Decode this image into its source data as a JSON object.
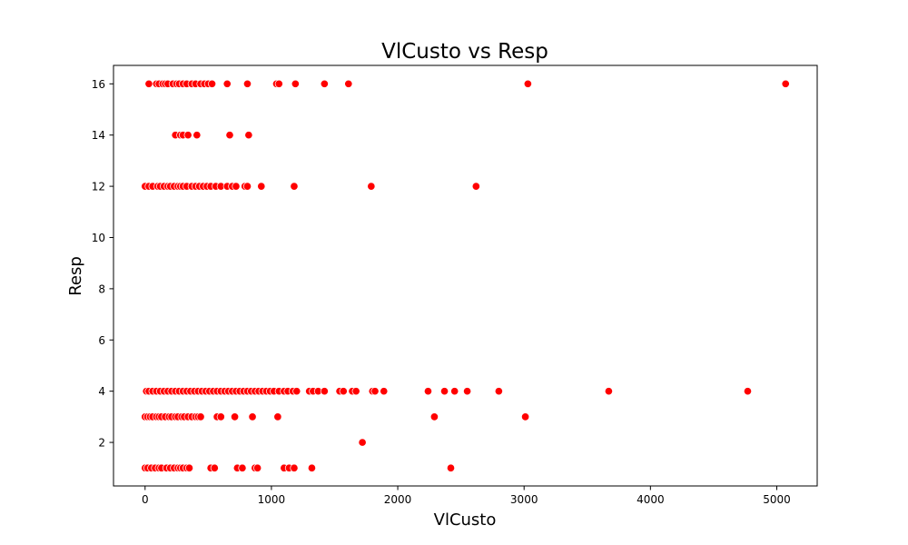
{
  "chart_data": {
    "type": "scatter",
    "title": "VlCusto vs Resp",
    "xlabel": "VlCusto",
    "ylabel": "Resp",
    "xlim": [
      -250,
      5320
    ],
    "ylim": [
      0.3,
      16.72
    ],
    "xticks": [
      0,
      1000,
      2000,
      3000,
      4000,
      5000
    ],
    "yticks": [
      2,
      4,
      6,
      8,
      10,
      12,
      14,
      16
    ],
    "grid": false,
    "legend": "none",
    "marker_color": "#ff0000",
    "series": [
      {
        "points": [
          [
            30,
            16
          ],
          [
            90,
            16
          ],
          [
            110,
            16
          ],
          [
            140,
            16
          ],
          [
            160,
            16
          ],
          [
            180,
            16
          ],
          [
            220,
            16
          ],
          [
            250,
            16
          ],
          [
            270,
            16
          ],
          [
            300,
            16
          ],
          [
            330,
            16
          ],
          [
            370,
            16
          ],
          [
            400,
            16
          ],
          [
            440,
            16
          ],
          [
            470,
            16
          ],
          [
            500,
            16
          ],
          [
            530,
            16
          ],
          [
            650,
            16
          ],
          [
            810,
            16
          ],
          [
            1040,
            16
          ],
          [
            1060,
            16
          ],
          [
            1190,
            16
          ],
          [
            1420,
            16
          ],
          [
            1610,
            16
          ],
          [
            3030,
            16
          ],
          [
            5070,
            16
          ],
          [
            240,
            14
          ],
          [
            280,
            14
          ],
          [
            300,
            14
          ],
          [
            340,
            14
          ],
          [
            410,
            14
          ],
          [
            670,
            14
          ],
          [
            820,
            14
          ],
          [
            0,
            12
          ],
          [
            30,
            12
          ],
          [
            60,
            12
          ],
          [
            100,
            12
          ],
          [
            120,
            12
          ],
          [
            150,
            12
          ],
          [
            180,
            12
          ],
          [
            200,
            12
          ],
          [
            230,
            12
          ],
          [
            260,
            12
          ],
          [
            280,
            12
          ],
          [
            300,
            12
          ],
          [
            330,
            12
          ],
          [
            370,
            12
          ],
          [
            400,
            12
          ],
          [
            430,
            12
          ],
          [
            460,
            12
          ],
          [
            490,
            12
          ],
          [
            520,
            12
          ],
          [
            560,
            12
          ],
          [
            600,
            12
          ],
          [
            650,
            12
          ],
          [
            690,
            12
          ],
          [
            720,
            12
          ],
          [
            790,
            12
          ],
          [
            810,
            12
          ],
          [
            920,
            12
          ],
          [
            1180,
            12
          ],
          [
            1790,
            12
          ],
          [
            2620,
            12
          ],
          [
            10,
            4
          ],
          [
            30,
            4
          ],
          [
            60,
            4
          ],
          [
            90,
            4
          ],
          [
            120,
            4
          ],
          [
            150,
            4
          ],
          [
            180,
            4
          ],
          [
            210,
            4
          ],
          [
            240,
            4
          ],
          [
            270,
            4
          ],
          [
            300,
            4
          ],
          [
            330,
            4
          ],
          [
            360,
            4
          ],
          [
            390,
            4
          ],
          [
            420,
            4
          ],
          [
            450,
            4
          ],
          [
            480,
            4
          ],
          [
            510,
            4
          ],
          [
            540,
            4
          ],
          [
            570,
            4
          ],
          [
            600,
            4
          ],
          [
            630,
            4
          ],
          [
            660,
            4
          ],
          [
            690,
            4
          ],
          [
            720,
            4
          ],
          [
            750,
            4
          ],
          [
            780,
            4
          ],
          [
            810,
            4
          ],
          [
            840,
            4
          ],
          [
            870,
            4
          ],
          [
            900,
            4
          ],
          [
            930,
            4
          ],
          [
            960,
            4
          ],
          [
            990,
            4
          ],
          [
            1020,
            4
          ],
          [
            1060,
            4
          ],
          [
            1100,
            4
          ],
          [
            1130,
            4
          ],
          [
            1170,
            4
          ],
          [
            1200,
            4
          ],
          [
            1300,
            4
          ],
          [
            1330,
            4
          ],
          [
            1370,
            4
          ],
          [
            1420,
            4
          ],
          [
            1540,
            4
          ],
          [
            1570,
            4
          ],
          [
            1640,
            4
          ],
          [
            1670,
            4
          ],
          [
            1800,
            4
          ],
          [
            1820,
            4
          ],
          [
            1890,
            4
          ],
          [
            2240,
            4
          ],
          [
            2370,
            4
          ],
          [
            2450,
            4
          ],
          [
            2550,
            4
          ],
          [
            2800,
            4
          ],
          [
            3670,
            4
          ],
          [
            4770,
            4
          ],
          [
            0,
            3
          ],
          [
            20,
            3
          ],
          [
            40,
            3
          ],
          [
            60,
            3
          ],
          [
            90,
            3
          ],
          [
            110,
            3
          ],
          [
            130,
            3
          ],
          [
            160,
            3
          ],
          [
            190,
            3
          ],
          [
            210,
            3
          ],
          [
            240,
            3
          ],
          [
            260,
            3
          ],
          [
            290,
            3
          ],
          [
            310,
            3
          ],
          [
            340,
            3
          ],
          [
            370,
            3
          ],
          [
            400,
            3
          ],
          [
            420,
            3
          ],
          [
            440,
            3
          ],
          [
            570,
            3
          ],
          [
            600,
            3
          ],
          [
            710,
            3
          ],
          [
            850,
            3
          ],
          [
            1050,
            3
          ],
          [
            2290,
            3
          ],
          [
            3010,
            3
          ],
          [
            1720,
            2
          ],
          [
            0,
            1
          ],
          [
            20,
            1
          ],
          [
            50,
            1
          ],
          [
            80,
            1
          ],
          [
            110,
            1
          ],
          [
            130,
            1
          ],
          [
            170,
            1
          ],
          [
            200,
            1
          ],
          [
            230,
            1
          ],
          [
            260,
            1
          ],
          [
            280,
            1
          ],
          [
            300,
            1
          ],
          [
            330,
            1
          ],
          [
            350,
            1
          ],
          [
            520,
            1
          ],
          [
            550,
            1
          ],
          [
            730,
            1
          ],
          [
            770,
            1
          ],
          [
            870,
            1
          ],
          [
            890,
            1
          ],
          [
            1100,
            1
          ],
          [
            1140,
            1
          ],
          [
            1180,
            1
          ],
          [
            1320,
            1
          ],
          [
            2420,
            1
          ]
        ]
      }
    ]
  }
}
